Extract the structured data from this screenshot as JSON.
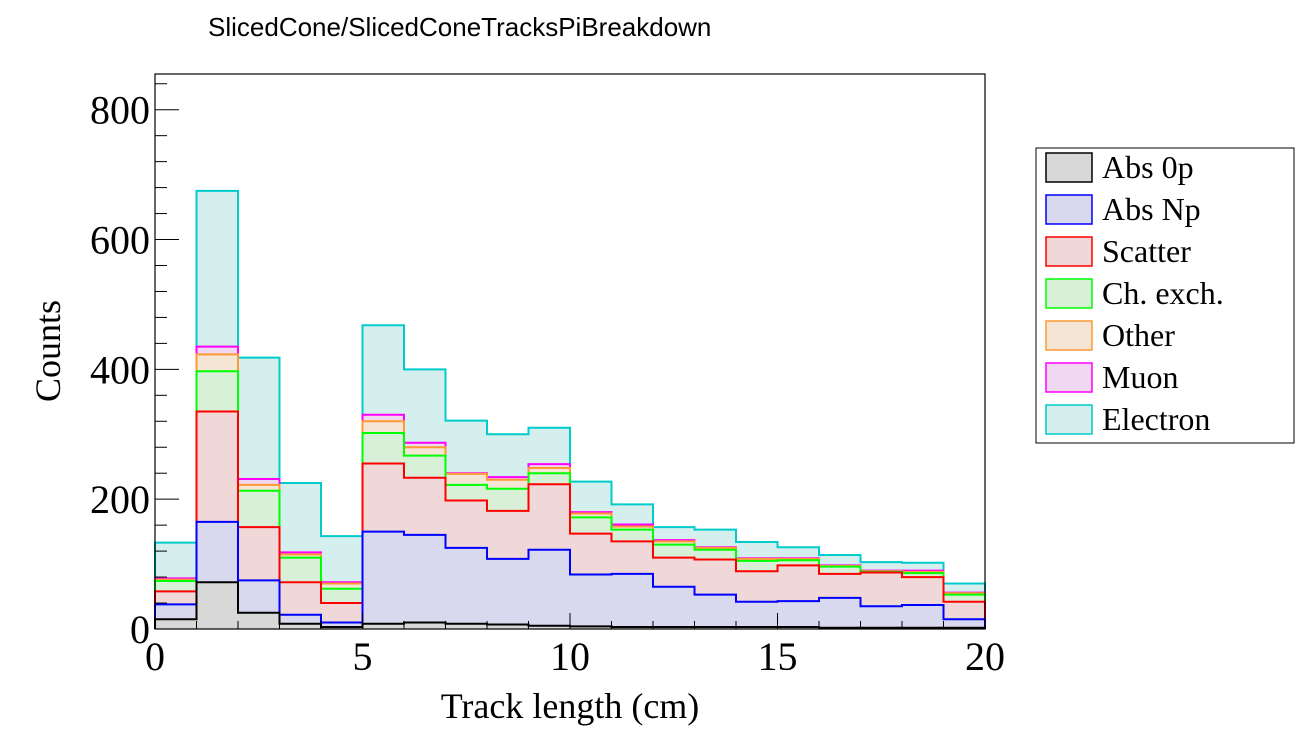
{
  "chart_data": {
    "type": "bar",
    "subtype": "stacked-histogram",
    "title": "SlicedCone/SlicedConeTracksPiBreakdown",
    "xlabel": "Track length (cm)",
    "ylabel": "Counts",
    "xlim": [
      0,
      20
    ],
    "ylim": [
      0,
      855
    ],
    "x_ticks": [
      "0",
      "5",
      "10",
      "15",
      "20"
    ],
    "y_ticks": [
      "0",
      "200",
      "400",
      "600",
      "800"
    ],
    "bin_edges": [
      0,
      1,
      2,
      3,
      4,
      5,
      6,
      7,
      8,
      9,
      10,
      11,
      12,
      13,
      14,
      15,
      16,
      17,
      18,
      19,
      20
    ],
    "grid": false,
    "legend_position": "right",
    "series": [
      {
        "name": "Abs 0p",
        "color": "#000000",
        "fill": "#d8d8d8",
        "values": [
          15,
          72,
          25,
          8,
          3,
          8,
          10,
          8,
          7,
          5,
          4,
          3,
          3,
          3,
          3,
          3,
          2,
          2,
          2,
          2
        ]
      },
      {
        "name": "Abs Np",
        "color": "#0000ff",
        "fill": "#d8d8ee",
        "values": [
          38,
          165,
          75,
          22,
          10,
          150,
          145,
          125,
          108,
          122,
          84,
          85,
          65,
          53,
          42,
          43,
          48,
          35,
          37,
          15
        ]
      },
      {
        "name": "Scatter",
        "color": "#ff0000",
        "fill": "#f0d8d8",
        "values": [
          58,
          335,
          157,
          72,
          40,
          255,
          233,
          198,
          182,
          223,
          147,
          135,
          110,
          107,
          89,
          98,
          85,
          87,
          80,
          42
        ]
      },
      {
        "name": "Ch. exch.",
        "color": "#00ff00",
        "fill": "#d8f0d8",
        "values": [
          74,
          397,
          213,
          110,
          62,
          302,
          267,
          222,
          216,
          240,
          172,
          153,
          130,
          122,
          105,
          106,
          96,
          88,
          86,
          53
        ]
      },
      {
        "name": "Other",
        "color": "#ff9933",
        "fill": "#f5e5d5",
        "values": [
          76,
          423,
          222,
          115,
          70,
          320,
          280,
          239,
          230,
          248,
          178,
          158,
          135,
          125,
          108,
          108,
          97,
          89,
          88,
          55
        ]
      },
      {
        "name": "Muon",
        "color": "#ff00ff",
        "fill": "#f0d8f0",
        "values": [
          78,
          435,
          231,
          118,
          72,
          330,
          287,
          240,
          234,
          254,
          180,
          161,
          137,
          126,
          109,
          109,
          98,
          90,
          90,
          56
        ]
      },
      {
        "name": "Electron",
        "color": "#00cccc",
        "fill": "#d5eeee",
        "values": [
          133,
          675,
          418,
          225,
          143,
          468,
          400,
          321,
          300,
          310,
          227,
          192,
          157,
          153,
          134,
          126,
          114,
          103,
          102,
          70
        ]
      }
    ]
  }
}
